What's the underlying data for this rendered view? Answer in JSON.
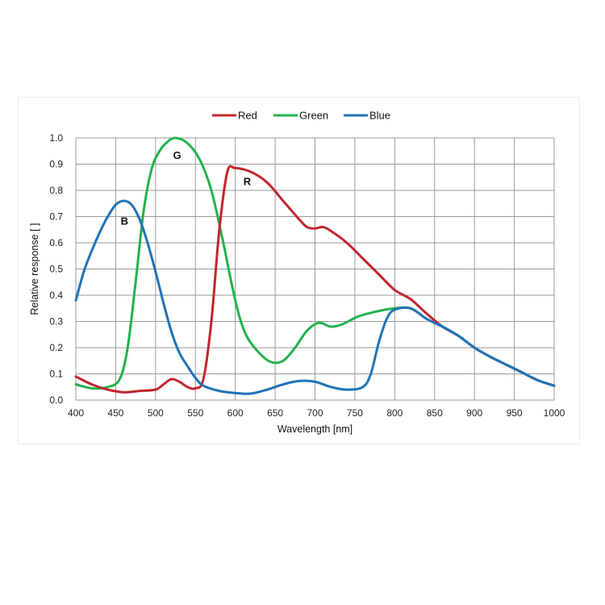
{
  "chart_data": {
    "type": "line",
    "title": "",
    "xlabel": "Wavelength [nm]",
    "ylabel": "Relative response [ ]",
    "xlim": [
      400,
      1000
    ],
    "ylim": [
      0,
      1.0
    ],
    "x_ticks": [
      "400",
      "450",
      "500",
      "550",
      "600",
      "650",
      "700",
      "750",
      "800",
      "850",
      "900",
      "950",
      "1000"
    ],
    "y_ticks": [
      "0.0",
      "0.1",
      "0.2",
      "0.3",
      "0.4",
      "0.5",
      "0.6",
      "0.7",
      "0.8",
      "0.9",
      "1.0"
    ],
    "grid": true,
    "legend_placement": "top-center",
    "series": [
      {
        "name": "Red",
        "color": "#c0262d",
        "points": [
          [
            400,
            0.09
          ],
          [
            420,
            0.06
          ],
          [
            440,
            0.04
          ],
          [
            460,
            0.03
          ],
          [
            480,
            0.035
          ],
          [
            500,
            0.04
          ],
          [
            510,
            0.06
          ],
          [
            520,
            0.08
          ],
          [
            530,
            0.07
          ],
          [
            540,
            0.05
          ],
          [
            550,
            0.045
          ],
          [
            560,
            0.08
          ],
          [
            570,
            0.3
          ],
          [
            580,
            0.65
          ],
          [
            590,
            0.87
          ],
          [
            600,
            0.885
          ],
          [
            620,
            0.87
          ],
          [
            640,
            0.83
          ],
          [
            660,
            0.76
          ],
          [
            680,
            0.69
          ],
          [
            690,
            0.66
          ],
          [
            700,
            0.655
          ],
          [
            710,
            0.66
          ],
          [
            720,
            0.645
          ],
          [
            740,
            0.6
          ],
          [
            760,
            0.54
          ],
          [
            780,
            0.48
          ],
          [
            800,
            0.42
          ],
          [
            820,
            0.385
          ],
          [
            840,
            0.33
          ],
          [
            860,
            0.28
          ],
          [
            880,
            0.245
          ],
          [
            900,
            0.2
          ],
          [
            920,
            0.165
          ],
          [
            940,
            0.135
          ],
          [
            960,
            0.105
          ],
          [
            980,
            0.075
          ],
          [
            1000,
            0.055
          ]
        ]
      },
      {
        "name": "Green",
        "color": "#22b14c",
        "points": [
          [
            400,
            0.06
          ],
          [
            420,
            0.045
          ],
          [
            440,
            0.05
          ],
          [
            455,
            0.08
          ],
          [
            465,
            0.2
          ],
          [
            475,
            0.45
          ],
          [
            485,
            0.72
          ],
          [
            495,
            0.88
          ],
          [
            505,
            0.95
          ],
          [
            515,
            0.985
          ],
          [
            525,
            1.0
          ],
          [
            540,
            0.98
          ],
          [
            555,
            0.92
          ],
          [
            570,
            0.8
          ],
          [
            585,
            0.6
          ],
          [
            595,
            0.45
          ],
          [
            605,
            0.32
          ],
          [
            615,
            0.24
          ],
          [
            630,
            0.18
          ],
          [
            645,
            0.145
          ],
          [
            660,
            0.15
          ],
          [
            675,
            0.2
          ],
          [
            690,
            0.265
          ],
          [
            705,
            0.295
          ],
          [
            720,
            0.28
          ],
          [
            735,
            0.29
          ],
          [
            755,
            0.32
          ],
          [
            780,
            0.34
          ],
          [
            800,
            0.35
          ],
          [
            820,
            0.35
          ],
          [
            840,
            0.31
          ],
          [
            860,
            0.28
          ],
          [
            880,
            0.245
          ],
          [
            900,
            0.2
          ],
          [
            920,
            0.165
          ],
          [
            940,
            0.135
          ],
          [
            960,
            0.105
          ],
          [
            980,
            0.075
          ],
          [
            1000,
            0.055
          ]
        ]
      },
      {
        "name": "Blue",
        "color": "#1f73b8",
        "points": [
          [
            400,
            0.38
          ],
          [
            410,
            0.49
          ],
          [
            420,
            0.57
          ],
          [
            430,
            0.64
          ],
          [
            440,
            0.7
          ],
          [
            450,
            0.745
          ],
          [
            460,
            0.76
          ],
          [
            470,
            0.745
          ],
          [
            480,
            0.69
          ],
          [
            490,
            0.6
          ],
          [
            500,
            0.49
          ],
          [
            510,
            0.37
          ],
          [
            520,
            0.26
          ],
          [
            530,
            0.18
          ],
          [
            540,
            0.13
          ],
          [
            550,
            0.085
          ],
          [
            560,
            0.055
          ],
          [
            580,
            0.035
          ],
          [
            600,
            0.027
          ],
          [
            620,
            0.025
          ],
          [
            640,
            0.04
          ],
          [
            660,
            0.06
          ],
          [
            680,
            0.073
          ],
          [
            700,
            0.07
          ],
          [
            720,
            0.05
          ],
          [
            740,
            0.04
          ],
          [
            760,
            0.05
          ],
          [
            770,
            0.1
          ],
          [
            780,
            0.22
          ],
          [
            790,
            0.31
          ],
          [
            800,
            0.345
          ],
          [
            820,
            0.35
          ],
          [
            840,
            0.31
          ],
          [
            860,
            0.28
          ],
          [
            880,
            0.245
          ],
          [
            900,
            0.2
          ],
          [
            920,
            0.165
          ],
          [
            940,
            0.135
          ],
          [
            960,
            0.105
          ],
          [
            980,
            0.075
          ],
          [
            1000,
            0.055
          ]
        ]
      }
    ],
    "annotations": [
      {
        "text": "G",
        "x": 527,
        "y": 0.92
      },
      {
        "text": "R",
        "x": 615,
        "y": 0.82
      },
      {
        "text": "B",
        "x": 461,
        "y": 0.67
      }
    ]
  }
}
